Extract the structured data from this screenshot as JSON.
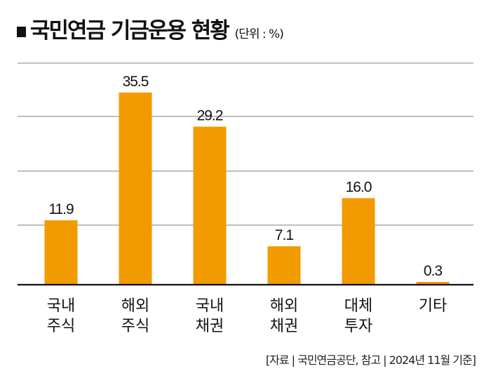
{
  "title": "국민연금 기금운용 현황",
  "unit": "(단위 : %)",
  "source": "[자료 | 국민연금공단, 참고 | 2024년 11월 기준]",
  "colors": {
    "bar": "#f29b00",
    "grid": "#999999",
    "axis": "#111111"
  },
  "chart_data": {
    "type": "bar",
    "title": "국민연금 기금운용 현황",
    "ylabel": "(단위 : %)",
    "categories": [
      [
        "국내",
        "주식"
      ],
      [
        "해외",
        "주식"
      ],
      [
        "국내",
        "채권"
      ],
      [
        "해외",
        "채권"
      ],
      [
        "대체",
        "투자"
      ],
      [
        "기타"
      ]
    ],
    "values": [
      11.9,
      35.5,
      29.2,
      7.1,
      16.0,
      0.3
    ],
    "data_labels": [
      "11.9",
      "35.5",
      "29.2",
      "7.1",
      "16.0",
      "0.3"
    ],
    "ylim": [
      0,
      40
    ],
    "grid": true
  }
}
